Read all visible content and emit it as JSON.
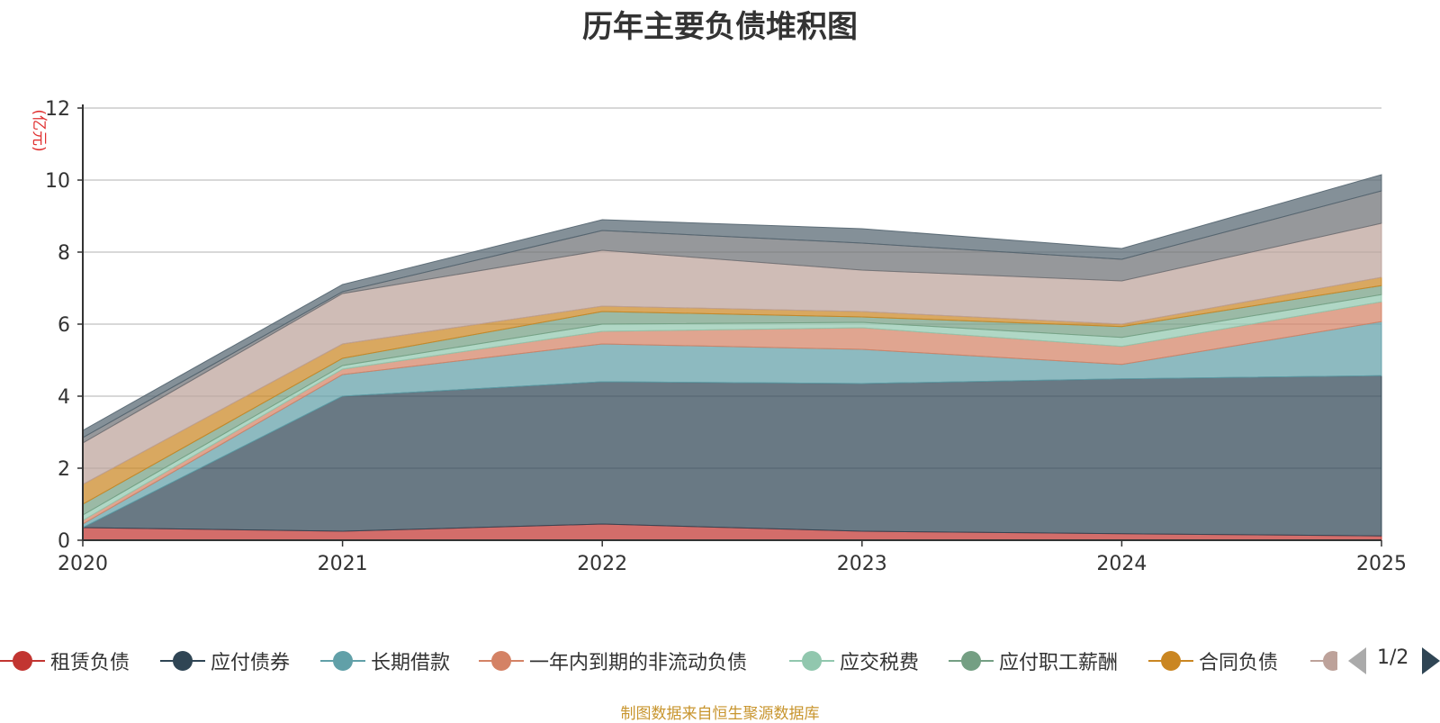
{
  "chart_data": {
    "type": "area",
    "stacked": true,
    "title": "历年主要负债堆积图",
    "ylabel": "(亿元)",
    "xlabel": "",
    "ylim": [
      0,
      12
    ],
    "yticks": [
      "0",
      "2",
      "4",
      "6",
      "8",
      "10",
      "12"
    ],
    "categories": [
      "2020",
      "2021",
      "2022",
      "2023",
      "2024",
      "2025"
    ],
    "series": [
      {
        "name": "租赁负债",
        "color": "#c23531",
        "values": [
          0.35,
          0.25,
          0.45,
          0.25,
          0.18,
          0.12
        ]
      },
      {
        "name": "应付债券",
        "color": "#2f4554",
        "values": [
          0.0,
          3.75,
          3.95,
          4.1,
          4.3,
          4.45
        ]
      },
      {
        "name": "长期借款",
        "color": "#61a0a8",
        "values": [
          0.1,
          0.6,
          1.05,
          0.95,
          0.4,
          1.5
        ]
      },
      {
        "name": "一年内到期的非流动负债",
        "color": "#d48265",
        "values": [
          0.1,
          0.15,
          0.35,
          0.6,
          0.5,
          0.55
        ]
      },
      {
        "name": "应交税费",
        "color": "#91c7ae",
        "values": [
          0.15,
          0.1,
          0.2,
          0.15,
          0.25,
          0.2
        ]
      },
      {
        "name": "应付职工薪酬",
        "color": "#749f83",
        "values": [
          0.3,
          0.2,
          0.35,
          0.15,
          0.3,
          0.25
        ]
      },
      {
        "name": "合同负债",
        "color": "#ca8622",
        "values": [
          0.55,
          0.4,
          0.15,
          0.15,
          0.07,
          0.23
        ]
      },
      {
        "name": "",
        "color": "#bda29a",
        "values": [
          1.15,
          1.4,
          1.55,
          1.15,
          1.2,
          1.5
        ]
      },
      {
        "name": "",
        "color": "#6e7074",
        "values": [
          0.15,
          0.05,
          0.55,
          0.75,
          0.6,
          0.9
        ]
      },
      {
        "name": "",
        "color": "#546570",
        "values": [
          0.2,
          0.2,
          0.3,
          0.4,
          0.3,
          0.45
        ]
      }
    ]
  },
  "legend": {
    "page": "1/2",
    "items": [
      {
        "label": "租赁负债",
        "color": "#c23531"
      },
      {
        "label": "应付债券",
        "color": "#2f4554"
      },
      {
        "label": "长期借款",
        "color": "#61a0a8"
      },
      {
        "label": "一年内到期的非流动负债",
        "color": "#d48265"
      },
      {
        "label": "应交税费",
        "color": "#91c7ae"
      },
      {
        "label": "应付职工薪酬",
        "color": "#749f83"
      },
      {
        "label": "合同负债",
        "color": "#ca8622"
      },
      {
        "label": "",
        "color": "#bda29a"
      }
    ]
  },
  "source": "制图数据来自恒生聚源数据库"
}
